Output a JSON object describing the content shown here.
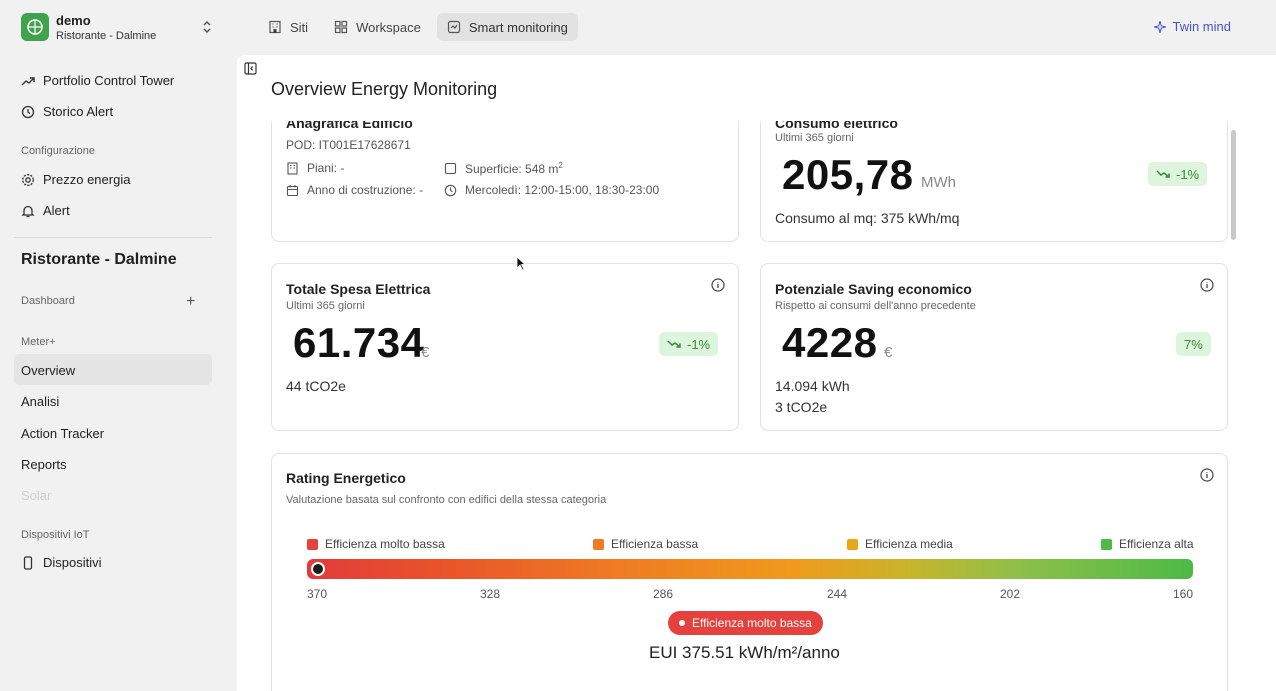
{
  "org": {
    "name": "demo",
    "site": "Ristorante - Dalmine"
  },
  "topnav": [
    {
      "label": "Siti",
      "icon": "building-icon"
    },
    {
      "label": "Workspace",
      "icon": "grid-icon"
    },
    {
      "label": "Smart monitoring",
      "icon": "monitor-icon"
    }
  ],
  "twin_mind": "Twin mind",
  "sidebar": {
    "portfolio": "Portfolio Control Tower",
    "storico": "Storico Alert",
    "config_section": "Configurazione",
    "prezzo": "Prezzo energia",
    "alert": "Alert",
    "site_title": "Ristorante - Dalmine",
    "dashboard": "Dashboard",
    "meter_section": "Meter+",
    "overview": "Overview",
    "analisi": "Analisi",
    "action_tracker": "Action Tracker",
    "reports": "Reports",
    "solar": "Solar",
    "iot_section": "Dispositivi IoT",
    "dispositivi": "Dispositivi"
  },
  "page": {
    "title": "Overview Energy Monitoring"
  },
  "anagrafica": {
    "title": "Anagrafica Edificio",
    "pod": "POD: IT001E17628671",
    "piani": "Piani: -",
    "anno": "Anno di costruzione: -",
    "superficie": "Superficie: 548 m",
    "superficie_sup": "2",
    "orari": "Mercoledì: 12:00-15:00, 18:30-23:00"
  },
  "consumo": {
    "title": "Consumo elettrico",
    "sub": "Ultimi 365 giorni",
    "value": "205,78",
    "unit": "MWh",
    "badge": "-1%",
    "extra": "Consumo al mq: 375 kWh/mq"
  },
  "spesa": {
    "title": "Totale Spesa Elettrica",
    "sub": "Ultimi 365 giorni",
    "value": "61.734",
    "unit": "€",
    "badge": "-1%",
    "extra": "44 tCO2e"
  },
  "saving": {
    "title": "Potenziale Saving economico",
    "sub": "Rispetto ai consumi dell'anno precedente",
    "value": "4228",
    "unit": "€",
    "badge": "7%",
    "extra1": "14.094 kWh",
    "extra2": "3 tCO2e"
  },
  "rating": {
    "title": "Rating Energetico",
    "sub": "Valutazione basata sul confronto con edifici della stessa categoria",
    "legend": [
      {
        "label": "Efficienza molto bassa",
        "color": "#e5413d"
      },
      {
        "label": "Efficienza bassa",
        "color": "#ef7b22"
      },
      {
        "label": "Efficienza media",
        "color": "#e6a817"
      },
      {
        "label": "Efficienza alta",
        "color": "#4dba46"
      }
    ],
    "ticks": [
      "370",
      "328",
      "286",
      "244",
      "202",
      "160"
    ],
    "marker_value": 375.51,
    "current": "Efficienza molto bassa",
    "eui": "EUI 375.51 kWh/m²/anno"
  },
  "colors": {
    "accent": "#4a53c8",
    "brand": "#3fa34d",
    "positive_bg": "#dcf5dc",
    "danger": "#e5413d"
  }
}
